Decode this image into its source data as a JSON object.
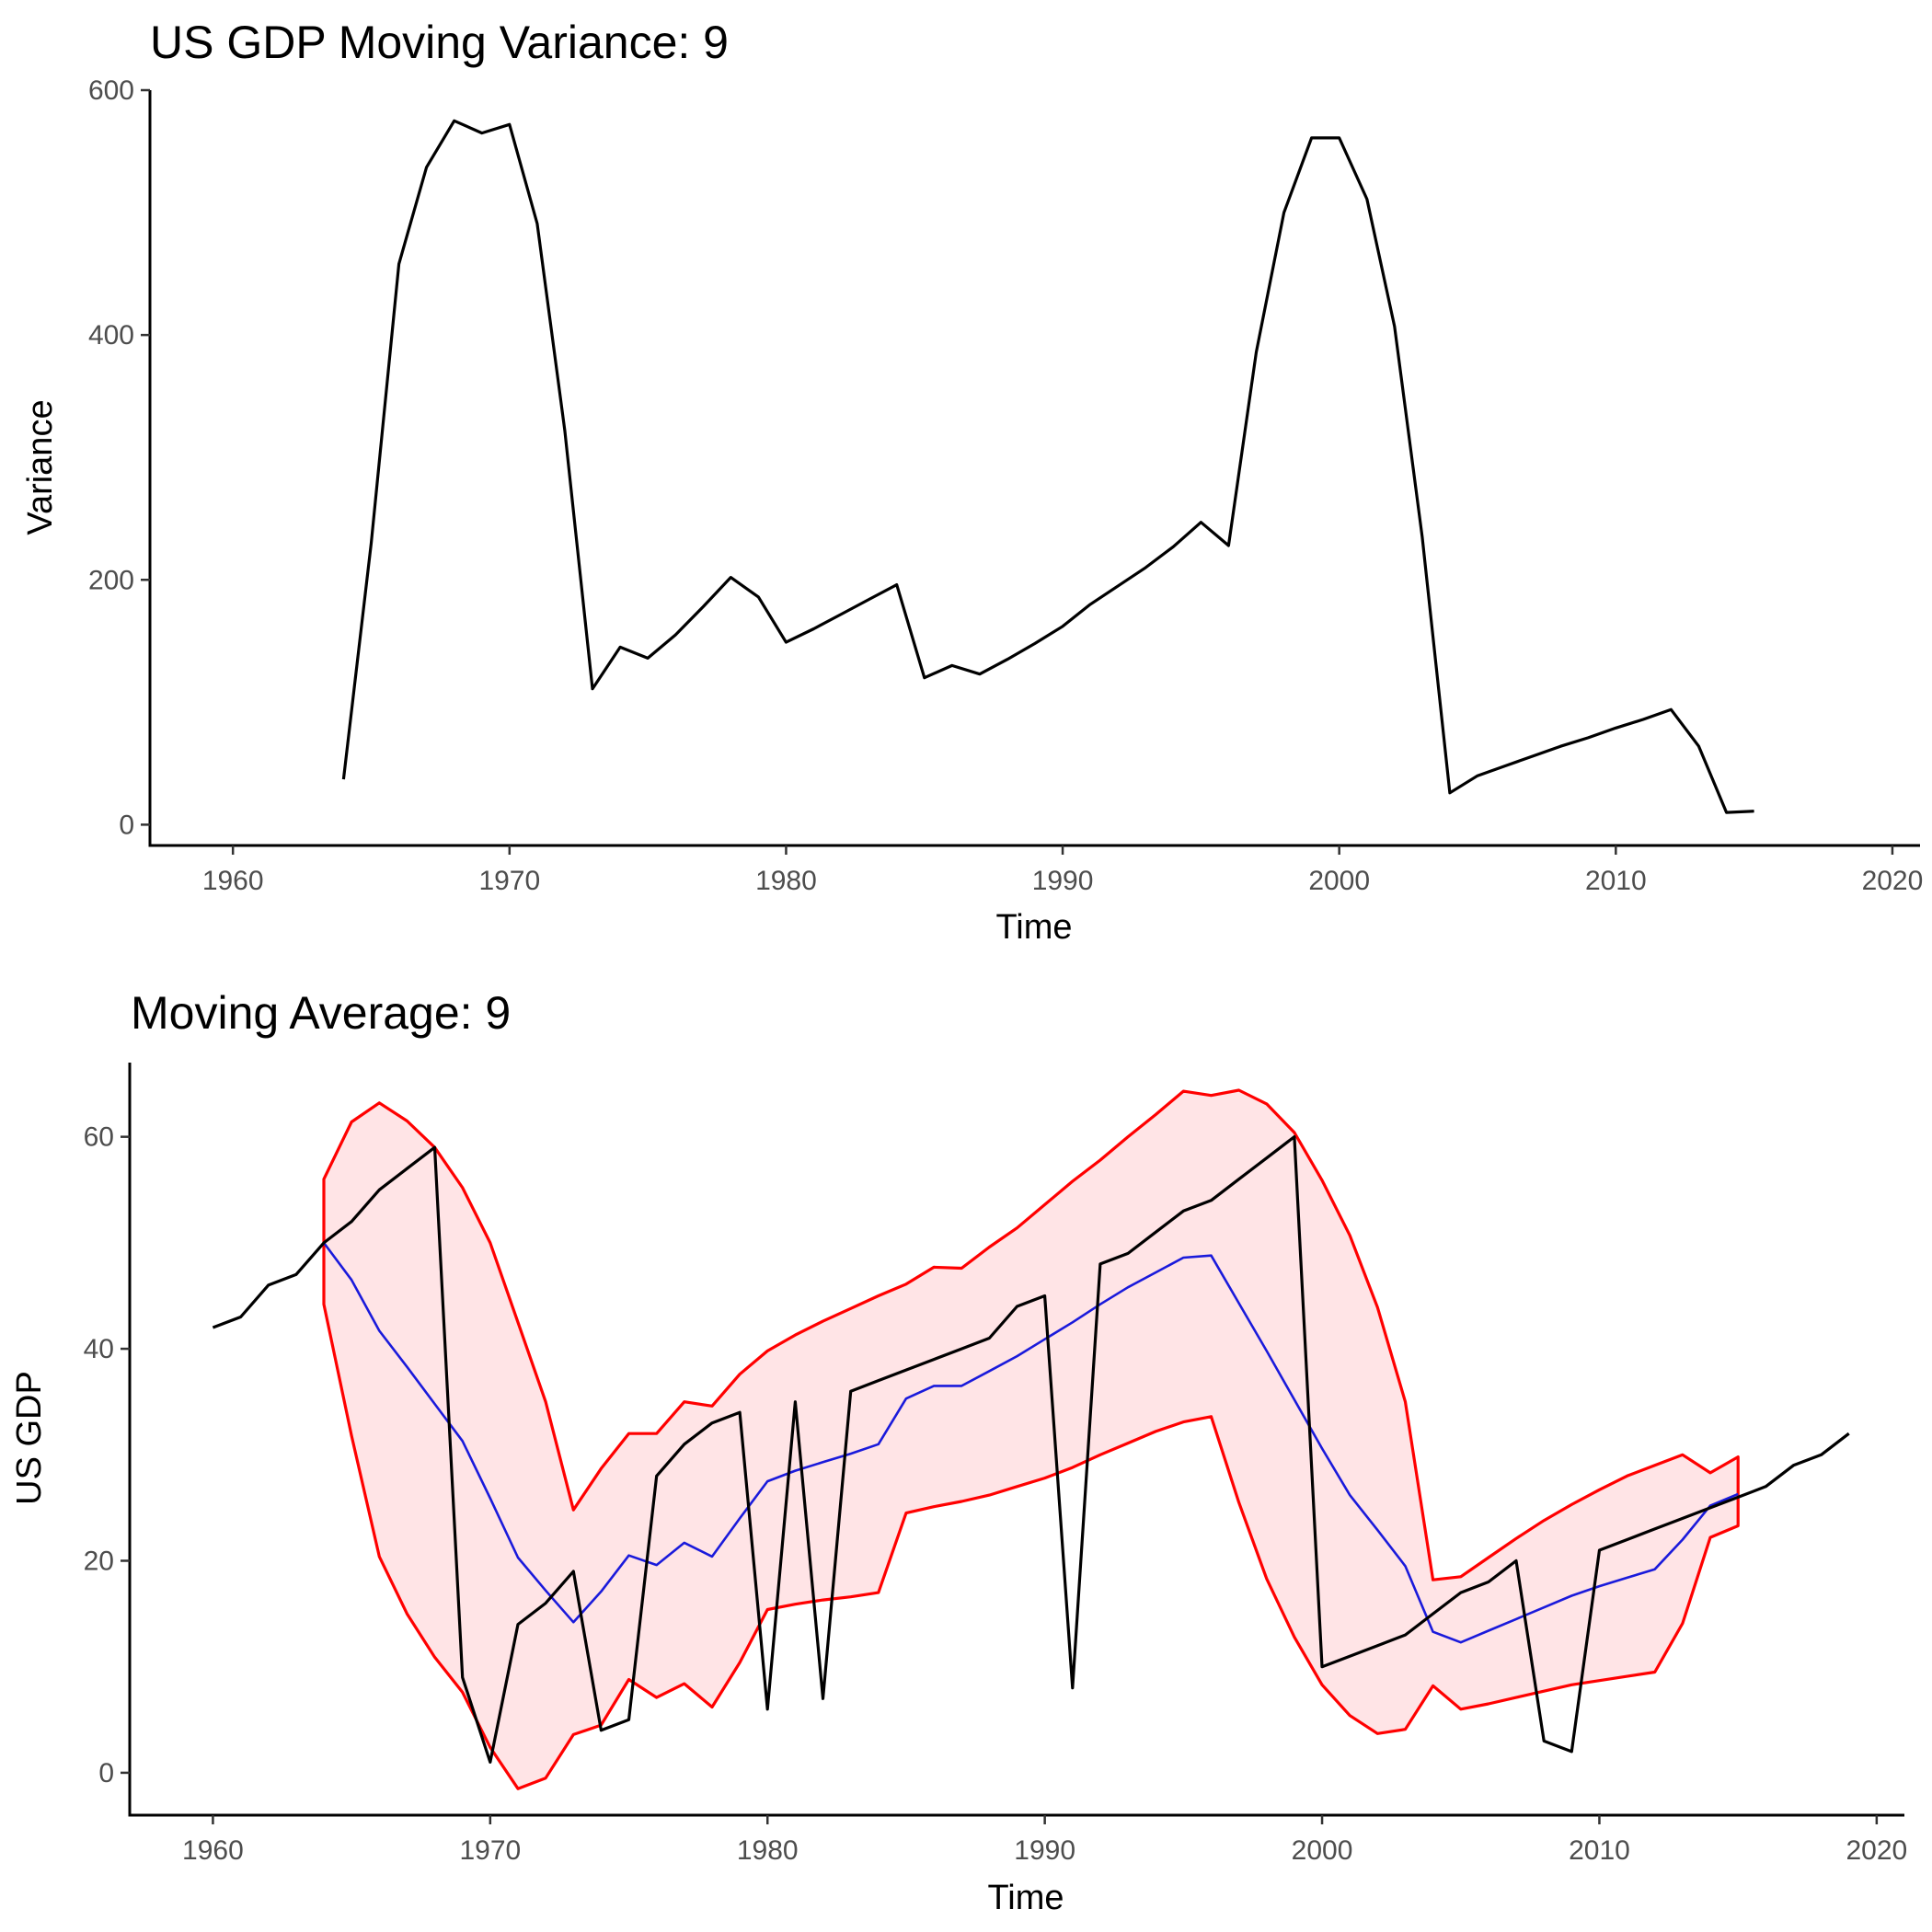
{
  "chart_data": [
    {
      "type": "line",
      "title": "US GDP Moving Variance: 9",
      "xlabel": "Time",
      "ylabel": "Variance",
      "xlim": [
        1957,
        2021
      ],
      "ylim": [
        -17,
        600
      ],
      "x_ticks": [
        1960,
        1970,
        1980,
        1990,
        2000,
        2010,
        2020
      ],
      "y_ticks": [
        0,
        200,
        400,
        600
      ],
      "grid": false,
      "colors": {
        "line": "#000000"
      },
      "series": [
        {
          "x": [
            1964,
            1965,
            1966,
            1967,
            1968,
            1969,
            1970,
            1971,
            1972,
            1973,
            1974,
            1975,
            1976,
            1977,
            1978,
            1979,
            1980,
            1981,
            1982,
            1983,
            1984,
            1985,
            1986,
            1987,
            1988,
            1989,
            1990,
            1991,
            1992,
            1993,
            1994,
            1995,
            1996,
            1997,
            1998,
            1999,
            2000,
            2001,
            2002,
            2003,
            2004,
            2005,
            2006,
            2007,
            2008,
            2009,
            2010,
            2011,
            2012,
            2013,
            2014,
            2015
          ],
          "values": [
            37,
            230,
            458,
            537,
            575,
            565,
            572,
            491,
            322,
            111,
            145,
            136,
            155,
            178,
            202,
            186,
            149,
            160,
            172,
            184,
            196,
            120,
            130,
            123,
            135,
            148,
            162,
            180,
            195,
            210,
            227,
            247,
            228,
            386,
            500,
            561,
            561,
            511,
            407,
            235,
            26,
            40,
            48,
            56,
            64,
            71,
            79,
            86,
            94,
            64,
            10,
            11
          ]
        }
      ]
    },
    {
      "type": "line",
      "title": "Moving Average: 9",
      "xlabel": "Time",
      "ylabel": "US GDP",
      "xlim": [
        1957,
        2021
      ],
      "ylim": [
        -4,
        67
      ],
      "x_ticks": [
        1960,
        1970,
        1980,
        1990,
        2000,
        2010,
        2020
      ],
      "y_ticks": [
        0,
        20,
        40,
        60
      ],
      "grid": false,
      "colors": {
        "gdp": "#000000",
        "moving_average": "#1a1adb",
        "band": "#ff0000",
        "band_fill": "#ffe4e6"
      },
      "x": [
        1960,
        1961,
        1962,
        1963,
        1964,
        1965,
        1966,
        1967,
        1968,
        1969,
        1970,
        1971,
        1972,
        1973,
        1974,
        1975,
        1976,
        1977,
        1978,
        1979,
        1980,
        1981,
        1982,
        1983,
        1984,
        1985,
        1986,
        1987,
        1988,
        1989,
        1990,
        1991,
        1992,
        1993,
        1994,
        1995,
        1996,
        1997,
        1998,
        1999,
        2000,
        2001,
        2002,
        2003,
        2004,
        2005,
        2006,
        2007,
        2008,
        2009,
        2010,
        2011,
        2012,
        2013,
        2014,
        2015,
        2016,
        2017,
        2018,
        2019
      ],
      "series": [
        {
          "key": "gdp",
          "values": [
            42,
            43,
            46,
            47,
            50,
            52,
            55,
            57,
            59,
            9,
            1,
            14,
            16,
            19,
            4,
            5,
            28,
            31,
            33,
            34,
            6,
            35,
            7,
            36,
            37,
            38,
            39,
            40,
            41,
            44,
            45,
            8,
            48,
            49,
            51,
            53,
            54,
            56,
            58,
            60,
            10,
            11,
            12,
            13,
            15,
            17,
            18,
            20,
            3,
            2,
            21,
            22,
            23,
            24,
            25,
            26,
            27,
            29,
            30,
            32
          ]
        },
        {
          "key": "moving_average",
          "values": [
            null,
            null,
            null,
            null,
            50,
            46.5,
            41.7,
            38.3,
            34.8,
            31.3,
            25.9,
            20.3,
            17.2,
            14.2,
            17.1,
            20.5,
            19.6,
            21.7,
            20.4,
            24,
            27.5,
            28.5,
            29.3,
            30.1,
            31,
            35.3,
            36.5,
            36.5,
            37.9,
            39.3,
            40.9,
            42.5,
            44.2,
            45.8,
            47.2,
            48.6,
            48.8,
            44.3,
            39.8,
            35.2,
            30.6,
            26.2,
            22.9,
            19.5,
            13.3,
            12.3,
            13.4,
            14.5,
            15.6,
            16.7,
            17.6,
            18.4,
            19.2,
            22,
            25.2,
            26.3,
            null,
            null,
            null,
            null
          ]
        },
        {
          "key": "band_upper",
          "values": [
            null,
            null,
            null,
            null,
            56,
            61.4,
            63.2,
            61.5,
            59,
            55.2,
            50,
            42.5,
            35,
            24.8,
            28.7,
            32,
            32,
            35,
            34.6,
            37.6,
            39.8,
            41.3,
            42.6,
            43.8,
            45,
            46.1,
            47.7,
            47.6,
            49.6,
            51.4,
            53.6,
            55.8,
            57.8,
            60,
            62.1,
            64.3,
            63.9,
            64.4,
            63.1,
            60.4,
            55.9,
            50.7,
            43.9,
            35,
            18.2,
            18.5,
            20.3,
            22.1,
            23.8,
            25.3,
            26.7,
            28,
            29,
            30,
            28.3,
            29.8,
            null,
            null,
            null,
            null
          ]
        },
        {
          "key": "band_lower",
          "values": [
            null,
            null,
            null,
            null,
            44.2,
            31.8,
            20.4,
            15,
            10.9,
            7.6,
            2.4,
            -1.5,
            -0.5,
            3.6,
            4.5,
            8.8,
            7.1,
            8.4,
            6.2,
            10.4,
            15.4,
            15.9,
            16.3,
            16.6,
            17,
            24.5,
            25.1,
            25.6,
            26.2,
            27,
            27.8,
            28.8,
            30,
            31.1,
            32.2,
            33.1,
            33.6,
            25.5,
            18.3,
            12.8,
            8.3,
            5.4,
            3.7,
            4.1,
            8.2,
            6,
            6.5,
            7.1,
            7.7,
            8.3,
            8.7,
            9.1,
            9.5,
            14.1,
            22.2,
            23.3,
            null,
            null,
            null,
            null
          ]
        }
      ]
    }
  ]
}
